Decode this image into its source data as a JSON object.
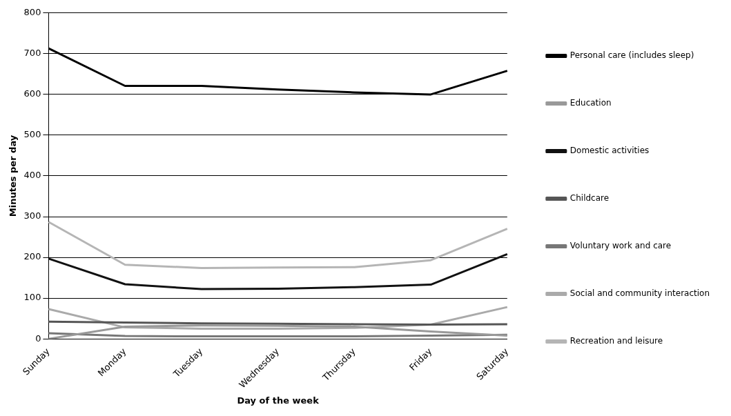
{
  "chart_data": {
    "type": "line",
    "xlabel": "Day of the week",
    "ylabel": "Minutes per day",
    "categories": [
      "Sunday",
      "Monday",
      "Tuesday",
      "Wednesday",
      "Thursday",
      "Friday",
      "Saturday"
    ],
    "series": [
      {
        "name": "Personal care (includes sleep)",
        "color": "#000000",
        "values": [
          713,
          621,
          621,
          612,
          605,
          600,
          658
        ]
      },
      {
        "name": "Education",
        "color": "#999999",
        "values": [
          0,
          30,
          33,
          32,
          30,
          18,
          8
        ]
      },
      {
        "name": "Domestic activities",
        "color": "#111111",
        "values": [
          197,
          134,
          122,
          123,
          127,
          133,
          208
        ]
      },
      {
        "name": "Childcare",
        "color": "#555555",
        "values": [
          42,
          40,
          38,
          37,
          36,
          35,
          36
        ]
      },
      {
        "name": "Voluntary work and care",
        "color": "#777777",
        "values": [
          14,
          7,
          6,
          6,
          6,
          8,
          10
        ]
      },
      {
        "name": "Social and community interaction",
        "color": "#aaaaaa",
        "values": [
          73,
          28,
          25,
          25,
          27,
          35,
          78
        ]
      },
      {
        "name": "Recreation and leisure",
        "color": "#b5b5b5",
        "values": [
          287,
          182,
          174,
          175,
          176,
          193,
          270
        ]
      }
    ],
    "ylim": [
      0,
      800
    ],
    "yticks": [
      0,
      100,
      200,
      300,
      400,
      500,
      600,
      700,
      800
    ],
    "grid": "y",
    "legend": "right",
    "marker": "none",
    "line_style": "solid"
  }
}
